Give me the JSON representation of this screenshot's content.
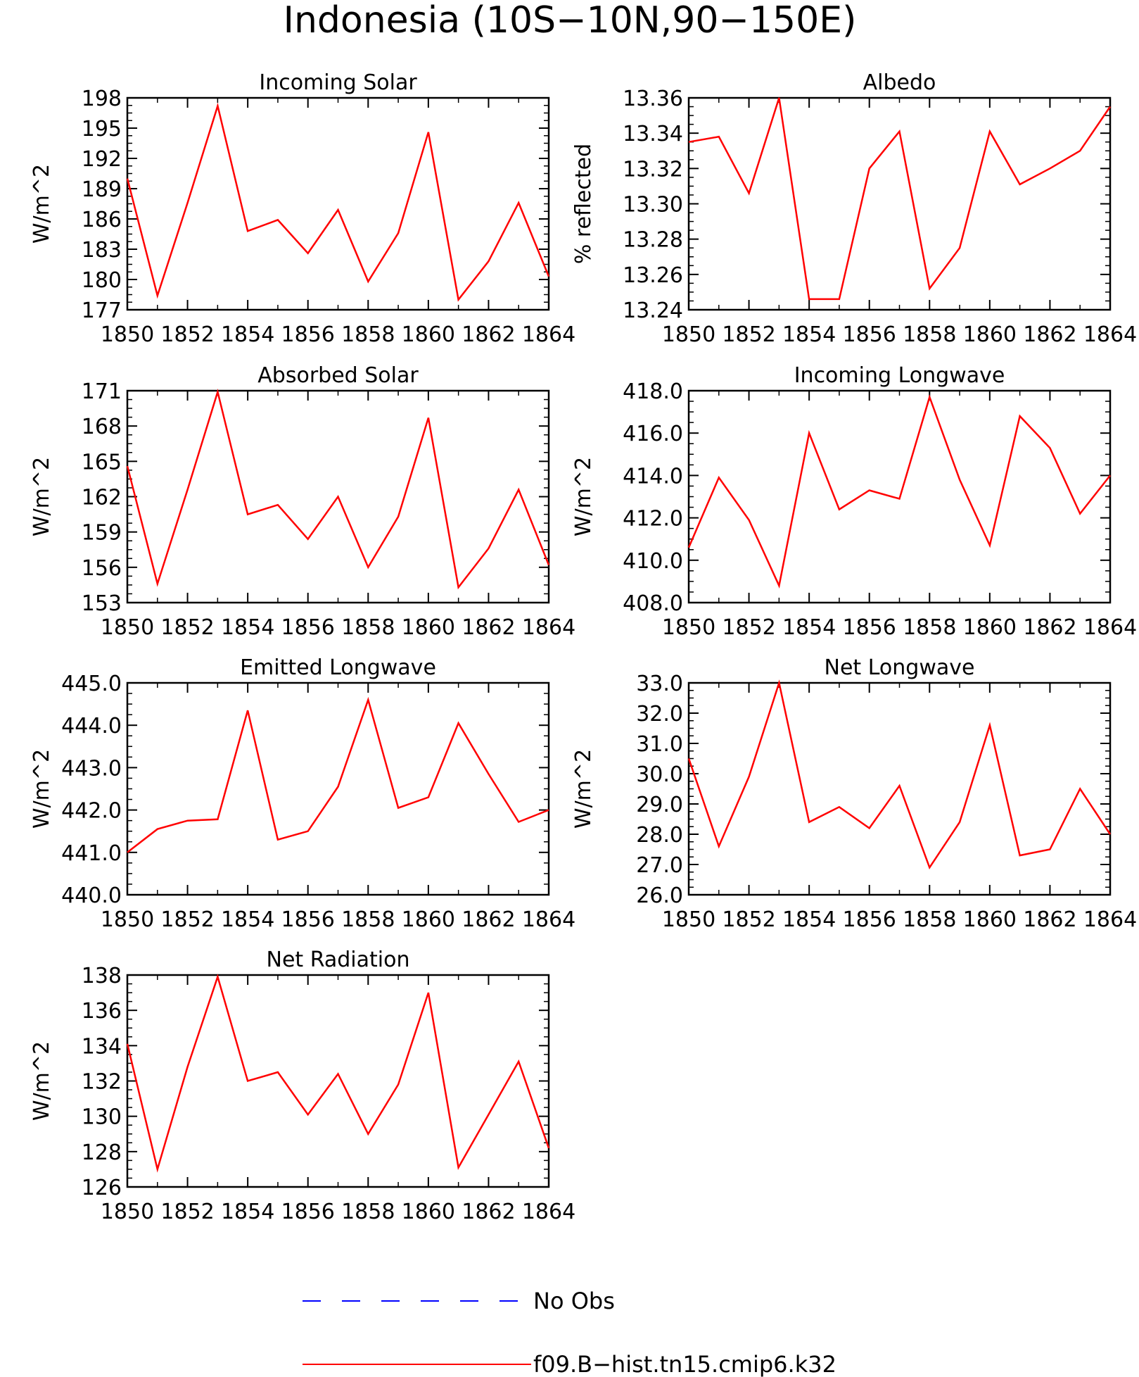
{
  "title": "Indonesia (10S−10N,90−150E)",
  "colors": {
    "model_line": "#ff0000",
    "obs_line": "#0000ff",
    "axes": "#000000"
  },
  "legend": {
    "position": "bottom-center",
    "items": [
      {
        "label": "No Obs",
        "style": "dashed",
        "color": "#0000ff"
      },
      {
        "label": "f09.B−hist.tn15.cmip6.k32",
        "style": "solid",
        "color": "#ff0000"
      }
    ]
  },
  "chart_data": [
    {
      "type": "line",
      "title": "Incoming Solar",
      "ylabel": "W/m^2",
      "xlim": [
        1850,
        1864
      ],
      "ylim": [
        177,
        198
      ],
      "xticks": [
        1850,
        1852,
        1854,
        1856,
        1858,
        1860,
        1862,
        1864
      ],
      "yticks": [
        "177",
        "180",
        "183",
        "186",
        "189",
        "192",
        "195",
        "198"
      ],
      "ylabel_side": "left",
      "series": [
        {
          "x": [
            1850,
            1851,
            1852,
            1853,
            1854,
            1855,
            1856,
            1857,
            1858,
            1859,
            1860,
            1861,
            1862,
            1863,
            1864
          ],
          "y": [
            190.0,
            178.4,
            187.6,
            197.2,
            184.8,
            185.9,
            182.6,
            186.9,
            179.8,
            184.6,
            194.6,
            178.0,
            181.8,
            187.6,
            180.3
          ]
        }
      ]
    },
    {
      "type": "line",
      "title": "Albedo",
      "ylabel": "% reflected",
      "xlim": [
        1850,
        1864
      ],
      "ylim": [
        13.24,
        13.36
      ],
      "xticks": [
        1850,
        1852,
        1854,
        1856,
        1858,
        1860,
        1862,
        1864
      ],
      "yticks": [
        "13.24",
        "13.26",
        "13.28",
        "13.30",
        "13.32",
        "13.34",
        "13.36"
      ],
      "ylabel_side": "left",
      "series": [
        {
          "x": [
            1850,
            1851,
            1852,
            1853,
            1854,
            1855,
            1856,
            1857,
            1858,
            1859,
            1860,
            1861,
            1862,
            1863,
            1864
          ],
          "y": [
            13.335,
            13.338,
            13.306,
            13.36,
            13.246,
            13.246,
            13.32,
            13.341,
            13.252,
            13.275,
            13.341,
            13.311,
            13.32,
            13.33,
            13.355
          ]
        }
      ]
    },
    {
      "type": "line",
      "title": "Absorbed Solar",
      "ylabel": "W/m^2",
      "xlim": [
        1850,
        1864
      ],
      "ylim": [
        153,
        171
      ],
      "xticks": [
        1850,
        1852,
        1854,
        1856,
        1858,
        1860,
        1862,
        1864
      ],
      "yticks": [
        "153",
        "156",
        "159",
        "162",
        "165",
        "168",
        "171"
      ],
      "ylabel_side": "left",
      "series": [
        {
          "x": [
            1850,
            1851,
            1852,
            1853,
            1854,
            1855,
            1856,
            1857,
            1858,
            1859,
            1860,
            1861,
            1862,
            1863,
            1864
          ],
          "y": [
            164.6,
            154.6,
            162.6,
            170.9,
            160.5,
            161.3,
            158.4,
            162.0,
            156.0,
            160.3,
            168.7,
            154.3,
            157.6,
            162.6,
            156.2
          ]
        }
      ]
    },
    {
      "type": "line",
      "title": "Incoming Longwave",
      "ylabel": "W/m^2",
      "xlim": [
        1850,
        1864
      ],
      "ylim": [
        408.0,
        418.0
      ],
      "xticks": [
        1850,
        1852,
        1854,
        1856,
        1858,
        1860,
        1862,
        1864
      ],
      "yticks": [
        "408.0",
        "410.0",
        "412.0",
        "414.0",
        "416.0",
        "418.0"
      ],
      "ylabel_side": "left",
      "series": [
        {
          "x": [
            1850,
            1851,
            1852,
            1853,
            1854,
            1855,
            1856,
            1857,
            1858,
            1859,
            1860,
            1861,
            1862,
            1863,
            1864
          ],
          "y": [
            410.6,
            413.9,
            411.9,
            408.8,
            416.0,
            412.4,
            413.3,
            412.9,
            417.7,
            413.8,
            410.7,
            416.8,
            415.3,
            412.2,
            414.0
          ]
        }
      ]
    },
    {
      "type": "line",
      "title": "Emitted Longwave",
      "ylabel": "W/m^2",
      "xlim": [
        1850,
        1864
      ],
      "ylim": [
        440.0,
        445.0
      ],
      "xticks": [
        1850,
        1852,
        1854,
        1856,
        1858,
        1860,
        1862,
        1864
      ],
      "yticks": [
        "440.0",
        "441.0",
        "442.0",
        "443.0",
        "444.0",
        "445.0"
      ],
      "ylabel_side": "left",
      "series": [
        {
          "x": [
            1850,
            1851,
            1852,
            1853,
            1854,
            1855,
            1856,
            1857,
            1858,
            1859,
            1860,
            1861,
            1862,
            1863,
            1864
          ],
          "y": [
            441.0,
            441.55,
            441.75,
            441.78,
            444.35,
            441.3,
            441.5,
            442.55,
            444.6,
            442.05,
            442.3,
            444.05,
            442.85,
            441.72,
            442.0
          ]
        }
      ]
    },
    {
      "type": "line",
      "title": "Net Longwave",
      "ylabel": "W/m^2",
      "xlim": [
        1850,
        1864
      ],
      "ylim": [
        26.0,
        33.0
      ],
      "xticks": [
        1850,
        1852,
        1854,
        1856,
        1858,
        1860,
        1862,
        1864
      ],
      "yticks": [
        "26.0",
        "27.0",
        "28.0",
        "29.0",
        "30.0",
        "31.0",
        "32.0",
        "33.0"
      ],
      "ylabel_side": "left",
      "series": [
        {
          "x": [
            1850,
            1851,
            1852,
            1853,
            1854,
            1855,
            1856,
            1857,
            1858,
            1859,
            1860,
            1861,
            1862,
            1863,
            1864
          ],
          "y": [
            30.5,
            27.6,
            29.9,
            33.0,
            28.4,
            28.9,
            28.2,
            29.6,
            26.9,
            28.4,
            31.6,
            27.3,
            27.5,
            29.5,
            28.0
          ]
        }
      ]
    },
    {
      "type": "line",
      "title": "Net Radiation",
      "ylabel": "W/m^2",
      "xlim": [
        1850,
        1864
      ],
      "ylim": [
        126,
        138
      ],
      "xticks": [
        1850,
        1852,
        1854,
        1856,
        1858,
        1860,
        1862,
        1864
      ],
      "yticks": [
        "126",
        "128",
        "130",
        "132",
        "134",
        "136",
        "138"
      ],
      "ylabel_side": "left",
      "series": [
        {
          "x": [
            1850,
            1851,
            1852,
            1853,
            1854,
            1855,
            1856,
            1857,
            1858,
            1859,
            1860,
            1861,
            1862,
            1863,
            1864
          ],
          "y": [
            134.1,
            127.0,
            132.8,
            137.9,
            132.0,
            132.5,
            130.1,
            132.4,
            129.0,
            131.8,
            137.0,
            127.1,
            130.1,
            133.1,
            128.2
          ]
        }
      ]
    }
  ]
}
